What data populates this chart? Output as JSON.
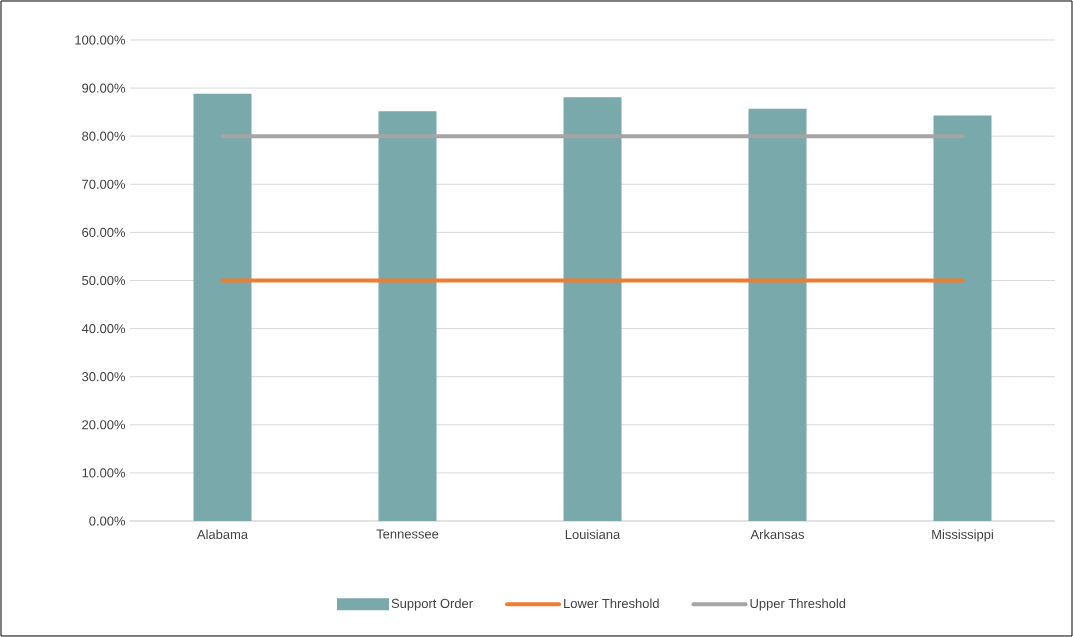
{
  "chart_data": {
    "type": "bar",
    "categories": [
      "Alabama",
      "Tennessee",
      "Louisiana",
      "Arkansas",
      "Mississippi"
    ],
    "series": [
      {
        "name": "Support Order",
        "color": "#79a9aa",
        "values": [
          88.8,
          85.2,
          88.1,
          85.7,
          84.3
        ]
      },
      {
        "name": "Lower Threshold",
        "type": "line",
        "color": "#ed7d31",
        "values": [
          50,
          50,
          50,
          50,
          50
        ]
      },
      {
        "name": "Upper Threshold",
        "type": "line",
        "color": "#a5a5a5",
        "values": [
          80,
          80,
          80,
          80,
          80
        ]
      }
    ],
    "ylim": [
      0,
      100
    ],
    "yticks": [
      {
        "value": 0,
        "label": "0.00%"
      },
      {
        "value": 10,
        "label": "10.00%"
      },
      {
        "value": 20,
        "label": "20.00%"
      },
      {
        "value": 30,
        "label": "30.00%"
      },
      {
        "value": 40,
        "label": "40.00%"
      },
      {
        "value": 50,
        "label": "50.00%"
      },
      {
        "value": 60,
        "label": "60.00%"
      },
      {
        "value": 70,
        "label": "70.00%"
      },
      {
        "value": 80,
        "label": "80.00%"
      },
      {
        "value": 90,
        "label": "90.00%"
      },
      {
        "value": 100,
        "label": "100.00%"
      }
    ],
    "grid": "y",
    "legend": "bottom",
    "marker": "none"
  }
}
